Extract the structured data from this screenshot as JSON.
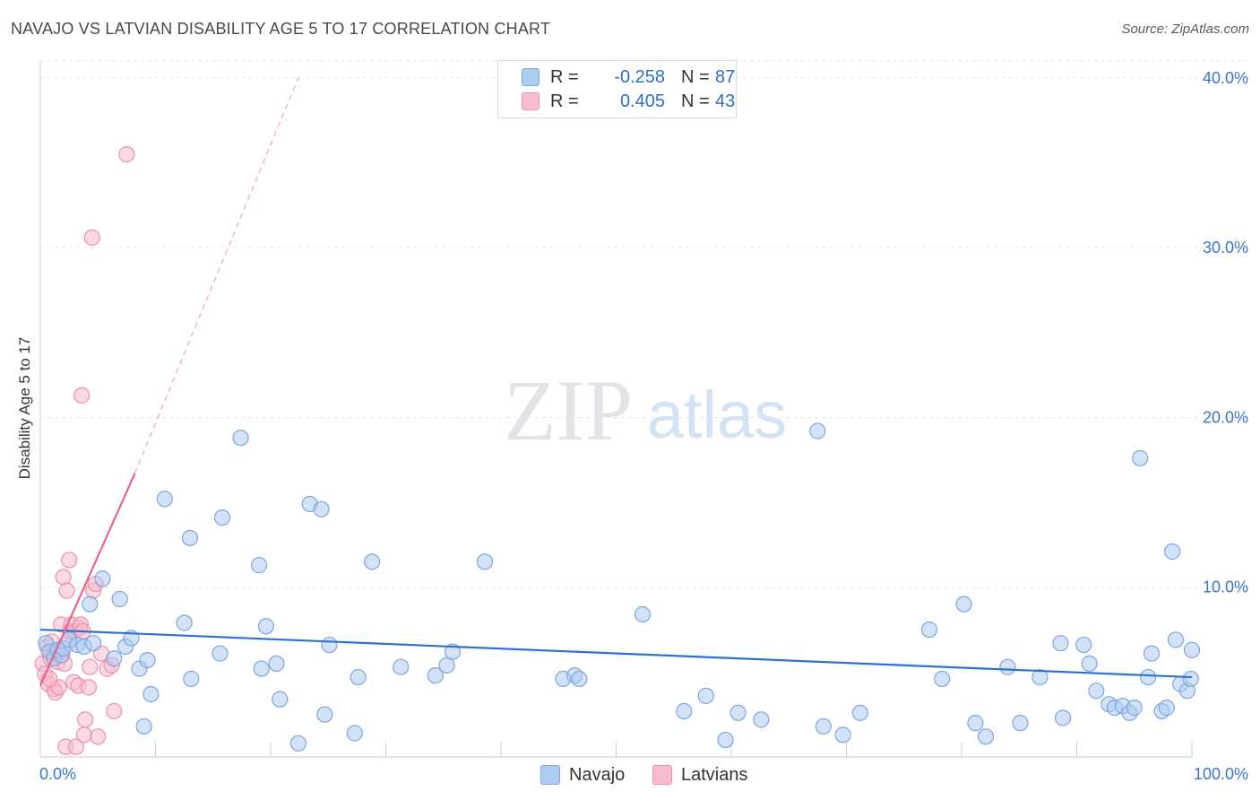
{
  "header": {
    "title": "NAVAJO VS LATVIAN DISABILITY AGE 5 TO 17 CORRELATION CHART",
    "source": "Source: ZipAtlas.com"
  },
  "watermark": {
    "zip": "ZIP",
    "atlas": "atlas"
  },
  "legend": {
    "r_label": "R =",
    "n_label": "N =",
    "items": [
      {
        "name": "Navajo",
        "r": "-0.258",
        "n": "87"
      },
      {
        "name": "Latvians",
        "r": "0.405",
        "n": "43"
      }
    ]
  },
  "colors": {
    "navajo_fill": "#aecbf0",
    "navajo_stroke": "#7aa7e0",
    "navajo_line": "#2f72cc",
    "latvians_fill": "#f7bccd",
    "latvians_stroke": "#ee8fab",
    "latvians_line": "#e8648e",
    "tick_label": "#3b74c9",
    "grid": "#e2e4e8"
  },
  "chart_data": {
    "type": "scatter",
    "title": "NAVAJO VS LATVIAN DISABILITY AGE 5 TO 17 CORRELATION CHART",
    "xlabel": "",
    "ylabel": "Disability Age 5 to 17",
    "xlim": [
      0,
      100
    ],
    "ylim": [
      0,
      41
    ],
    "x_tick_labels": [
      {
        "value": 0,
        "label": "0.0%"
      },
      {
        "value": 100,
        "label": "100.0%"
      }
    ],
    "x_minor_ticks": [
      10,
      20,
      30,
      40,
      50,
      60,
      70,
      80,
      90,
      100
    ],
    "y_ticks": [
      {
        "value": 10,
        "label": "10.0%"
      },
      {
        "value": 20,
        "label": "20.0%"
      },
      {
        "value": 30,
        "label": "30.0%"
      },
      {
        "value": 40,
        "label": "40.0%"
      }
    ],
    "grid": "horizontal dashed",
    "legend_position": "top-center",
    "series": [
      {
        "name": "Navajo",
        "color": "#aecbf0",
        "trend": {
          "x0": 0,
          "y0": 7.5,
          "x1": 100,
          "y1": 4.7,
          "style": "solid"
        },
        "points": [
          [
            0.5,
            6.7
          ],
          [
            0.8,
            6.2
          ],
          [
            1.2,
            5.8
          ],
          [
            1.5,
            6.3
          ],
          [
            1.8,
            6.0
          ],
          [
            2.0,
            6.4
          ],
          [
            2.5,
            6.9
          ],
          [
            3.2,
            6.6
          ],
          [
            3.8,
            6.5
          ],
          [
            4.6,
            6.7
          ],
          [
            5.4,
            10.5
          ],
          [
            4.3,
            9.0
          ],
          [
            6.4,
            5.8
          ],
          [
            6.9,
            9.3
          ],
          [
            7.4,
            6.5
          ],
          [
            7.9,
            7.0
          ],
          [
            8.6,
            5.2
          ],
          [
            9.3,
            5.7
          ],
          [
            9.6,
            3.7
          ],
          [
            9.0,
            1.8
          ],
          [
            10.8,
            15.2
          ],
          [
            12.5,
            7.9
          ],
          [
            13.0,
            12.9
          ],
          [
            13.1,
            4.6
          ],
          [
            15.6,
            6.1
          ],
          [
            15.8,
            14.1
          ],
          [
            17.4,
            18.8
          ],
          [
            19.0,
            11.3
          ],
          [
            19.2,
            5.2
          ],
          [
            19.6,
            7.7
          ],
          [
            20.5,
            5.5
          ],
          [
            20.8,
            3.4
          ],
          [
            22.4,
            0.8
          ],
          [
            23.4,
            14.9
          ],
          [
            24.4,
            14.6
          ],
          [
            24.7,
            2.5
          ],
          [
            25.1,
            6.6
          ],
          [
            27.3,
            1.4
          ],
          [
            27.6,
            4.7
          ],
          [
            28.8,
            11.5
          ],
          [
            31.3,
            5.3
          ],
          [
            34.3,
            4.8
          ],
          [
            35.3,
            5.4
          ],
          [
            35.8,
            6.2
          ],
          [
            38.6,
            11.5
          ],
          [
            45.4,
            4.6
          ],
          [
            46.4,
            4.8
          ],
          [
            46.8,
            4.6
          ],
          [
            52.3,
            8.4
          ],
          [
            55.9,
            2.7
          ],
          [
            57.8,
            3.6
          ],
          [
            59.5,
            1.0
          ],
          [
            60.6,
            2.6
          ],
          [
            62.6,
            2.2
          ],
          [
            67.5,
            19.2
          ],
          [
            68.0,
            1.8
          ],
          [
            69.7,
            1.3
          ],
          [
            71.2,
            2.6
          ],
          [
            77.2,
            7.5
          ],
          [
            78.3,
            4.6
          ],
          [
            80.2,
            9.0
          ],
          [
            81.2,
            2.0
          ],
          [
            82.1,
            1.2
          ],
          [
            84.0,
            5.3
          ],
          [
            85.1,
            2.0
          ],
          [
            86.8,
            4.7
          ],
          [
            88.6,
            6.7
          ],
          [
            88.8,
            2.3
          ],
          [
            90.6,
            6.6
          ],
          [
            91.1,
            5.5
          ],
          [
            91.7,
            3.9
          ],
          [
            92.8,
            3.1
          ],
          [
            93.3,
            2.9
          ],
          [
            94.0,
            3.0
          ],
          [
            94.6,
            2.6
          ],
          [
            95.0,
            2.9
          ],
          [
            95.5,
            17.6
          ],
          [
            96.2,
            4.7
          ],
          [
            96.5,
            6.1
          ],
          [
            97.4,
            2.7
          ],
          [
            97.8,
            2.9
          ],
          [
            98.3,
            12.1
          ],
          [
            98.6,
            6.9
          ],
          [
            99.0,
            4.3
          ],
          [
            99.6,
            3.9
          ],
          [
            99.9,
            4.6
          ],
          [
            100.0,
            6.3
          ]
        ]
      },
      {
        "name": "Latvians",
        "color": "#f7bccd",
        "trend": {
          "x0": 0,
          "y0": 4.2,
          "x1": 8.2,
          "y1": 16.7,
          "style": "solid",
          "extended": {
            "x1": 22.4,
            "y1": 40.0,
            "style": "dashed"
          }
        },
        "points": [
          [
            0.2,
            5.5
          ],
          [
            0.4,
            4.9
          ],
          [
            0.6,
            6.5
          ],
          [
            0.7,
            4.3
          ],
          [
            0.9,
            5.8
          ],
          [
            1.0,
            6.8
          ],
          [
            1.2,
            4.0
          ],
          [
            1.3,
            3.8
          ],
          [
            1.5,
            5.6
          ],
          [
            1.6,
            4.1
          ],
          [
            1.8,
            7.8
          ],
          [
            1.9,
            6.0
          ],
          [
            2.0,
            10.6
          ],
          [
            2.1,
            5.5
          ],
          [
            2.2,
            0.6
          ],
          [
            2.3,
            9.8
          ],
          [
            2.4,
            6.7
          ],
          [
            2.5,
            11.6
          ],
          [
            2.6,
            7.4
          ],
          [
            2.7,
            7.8
          ],
          [
            2.9,
            4.4
          ],
          [
            3.0,
            7.4
          ],
          [
            3.1,
            0.6
          ],
          [
            3.3,
            4.2
          ],
          [
            3.4,
            7.6
          ],
          [
            3.5,
            7.8
          ],
          [
            3.6,
            21.3
          ],
          [
            3.7,
            7.4
          ],
          [
            3.8,
            1.3
          ],
          [
            3.9,
            2.2
          ],
          [
            4.2,
            4.1
          ],
          [
            4.3,
            5.3
          ],
          [
            4.5,
            30.6
          ],
          [
            4.6,
            9.8
          ],
          [
            4.8,
            10.2
          ],
          [
            5.0,
            1.2
          ],
          [
            5.3,
            6.1
          ],
          [
            5.8,
            5.2
          ],
          [
            6.2,
            5.4
          ],
          [
            6.4,
            2.7
          ],
          [
            7.5,
            35.5
          ],
          [
            0.8,
            4.6
          ],
          [
            1.1,
            6.1
          ]
        ]
      }
    ]
  }
}
